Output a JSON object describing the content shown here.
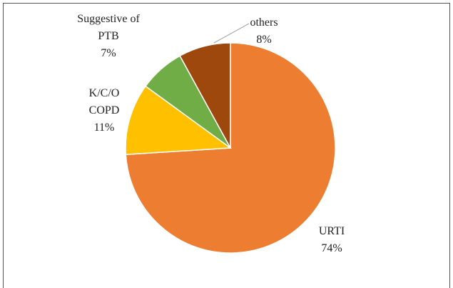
{
  "chart_data": {
    "type": "pie",
    "categories": [
      "URTI",
      "K/C/O COPD",
      "Suggestive of PTB",
      "others"
    ],
    "values": [
      74,
      11,
      7,
      8
    ],
    "value_labels": [
      "74%",
      "11%",
      "7%",
      "8%"
    ],
    "colors": [
      "#ED7D31",
      "#FFC000",
      "#70AD47",
      "#9E480E"
    ]
  }
}
